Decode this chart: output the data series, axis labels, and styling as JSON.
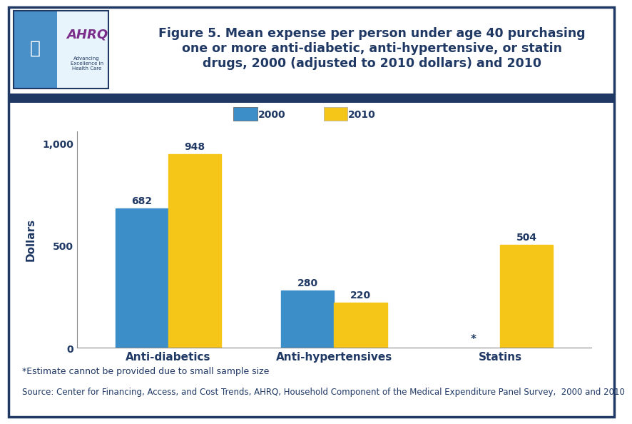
{
  "title_line1": "Figure 5. Mean expense per person under age 40 purchasing",
  "title_line2": "one or more anti-diabetic, anti-hypertensive, or statin",
  "title_line3": "drugs, 2000 (adjusted to 2010 dollars) and 2010",
  "categories": [
    "Anti-diabetics",
    "Anti-hypertensives",
    "Statins"
  ],
  "values_2000": [
    682,
    280,
    null
  ],
  "values_2010": [
    948,
    220,
    504
  ],
  "bar_color_2000": "#3b8ec8",
  "bar_color_2010": "#f5c518",
  "ylabel": "Dollars",
  "ylim": [
    0,
    1060
  ],
  "yticks": [
    0,
    500,
    1000
  ],
  "ytick_labels": [
    "0",
    "500",
    "1,000"
  ],
  "legend_labels": [
    "2000",
    "2010"
  ],
  "footnote1": "*Estimate cannot be provided due to small sample size",
  "footnote2": "Source: Center for Financing, Access, and Cost Trends, AHRQ, Household Component of the Medical Expenditure Panel Survey,  2000 and 2010",
  "title_color": "#1f3864",
  "axis_label_color": "#1f3864",
  "tick_label_color": "#1f3864",
  "bar_label_color": "#1f3864",
  "background_color": "#ffffff",
  "outer_border_color": "#1f3864",
  "separator_color": "#1f3864",
  "bar_width": 0.32,
  "title_fontsize": 12.5,
  "footnote1_fontsize": 9,
  "footnote2_fontsize": 8.5,
  "ylabel_fontsize": 11,
  "tick_fontsize": 10,
  "bar_label_fontsize": 10,
  "legend_fontsize": 10,
  "category_fontsize": 11,
  "header_logo_bg": "#4a90c8",
  "header_logo_right_bg": "#e8f4fb"
}
